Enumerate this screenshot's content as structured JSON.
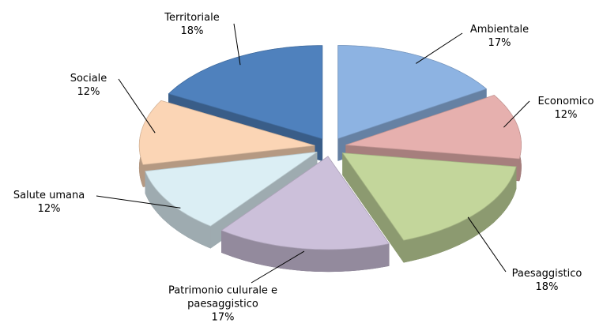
{
  "chart_data": {
    "type": "pie",
    "categories": [
      "Ambientale",
      "Economico",
      "Paesaggistico",
      "Patrimonio culurale e paesaggistico",
      "Salute umana",
      "Sociale",
      "Territoriale"
    ],
    "values": [
      17,
      12,
      18,
      17,
      12,
      12,
      18
    ],
    "value_labels": [
      "17%",
      "12%",
      "18%",
      "17%",
      "12%",
      "12%",
      "18%"
    ],
    "colors": [
      "#8db3e2",
      "#e6b0ae",
      "#c3d69b",
      "#ccc0da",
      "#dbeef4",
      "#fbd5b5",
      "#4f81bd"
    ]
  }
}
